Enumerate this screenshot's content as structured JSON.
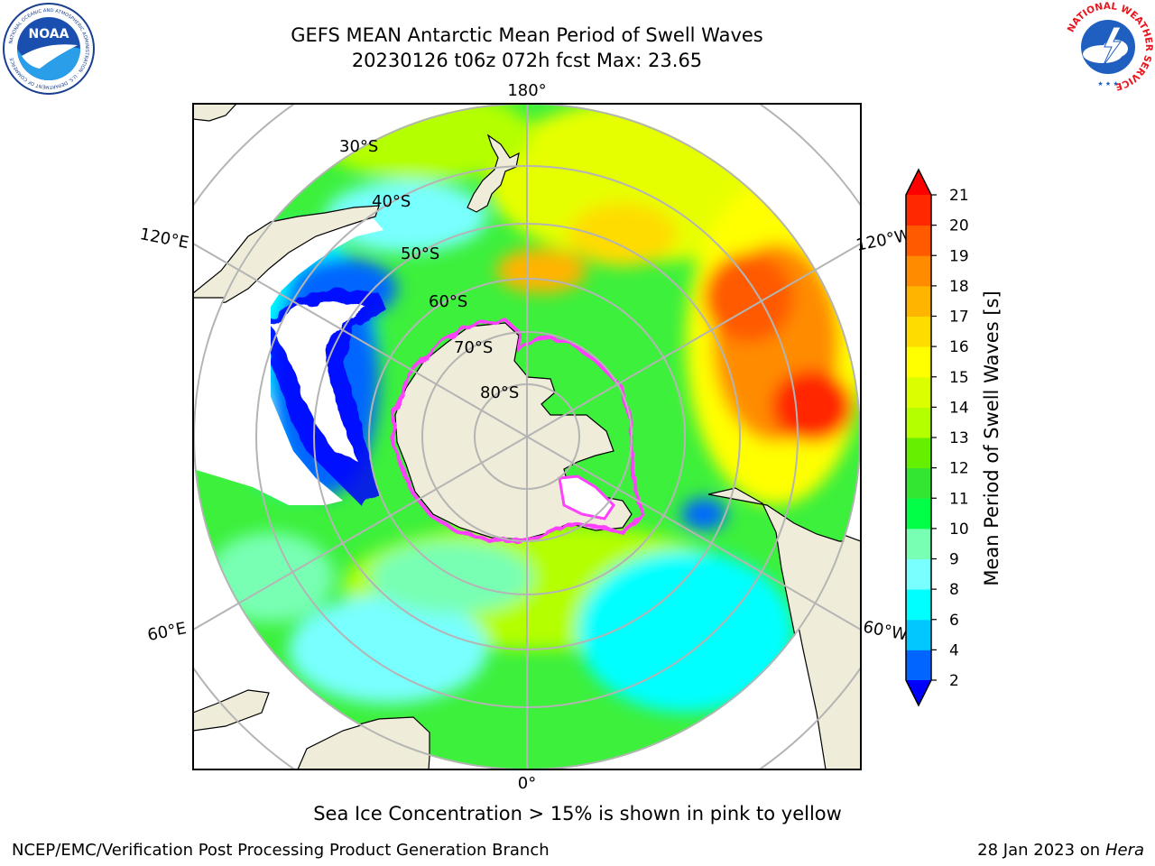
{
  "header": {
    "title_line1": "GEFS MEAN Antarctic Mean Period of Swell Waves",
    "title_line2": "20230126 t06z 072h fcst   Max: 23.65"
  },
  "logos": {
    "noaa": {
      "text": "NOAA",
      "ring_text": "NATIONAL OCEANIC AND ATMOSPHERIC ADMINISTRATION · U.S. DEPARTMENT OF COMMERCE"
    },
    "nws": {
      "ring_text": "NATIONAL WEATHER SERVICE"
    }
  },
  "map": {
    "projection": "south-polar-stereographic",
    "longitude_labels": {
      "top": "180°",
      "bottom": "0°",
      "upper_left": "120°E",
      "upper_right": "120°W",
      "lower_left": "60°E",
      "lower_right": "60°W"
    },
    "latitude_labels": [
      "30°S",
      "40°S",
      "50°S",
      "60°S",
      "70°S",
      "80°S"
    ],
    "colors": {
      "land": "#efedd9",
      "ocean_base": "#3cf03c",
      "ice_edge": "#ff40ff",
      "grid": "#b4b4b4"
    }
  },
  "colorbar": {
    "label": "Mean Period of Swell Waves [s]",
    "ticks": [
      "2",
      "4",
      "6",
      "8",
      "9",
      "10",
      "11",
      "12",
      "13",
      "14",
      "15",
      "16",
      "17",
      "18",
      "19",
      "20",
      "21"
    ],
    "colors": [
      "#0066ff",
      "#00c8ff",
      "#00ffff",
      "#78ffff",
      "#78ffb4",
      "#00ff46",
      "#32e632",
      "#64f000",
      "#b4ff00",
      "#dcff00",
      "#ffff00",
      "#ffdc00",
      "#ffb400",
      "#ff8c00",
      "#ff5a00",
      "#ff2800"
    ],
    "under_color": "#0000ff",
    "over_color": "#ff0000"
  },
  "footer": {
    "note": "Sea Ice Concentration > 15% is shown in pink to yellow",
    "credit_left": "NCEP/EMC/Verification Post Processing Product Generation Branch",
    "credit_right_prefix": "28 Jan 2023 on ",
    "credit_right_host": "Hera"
  }
}
